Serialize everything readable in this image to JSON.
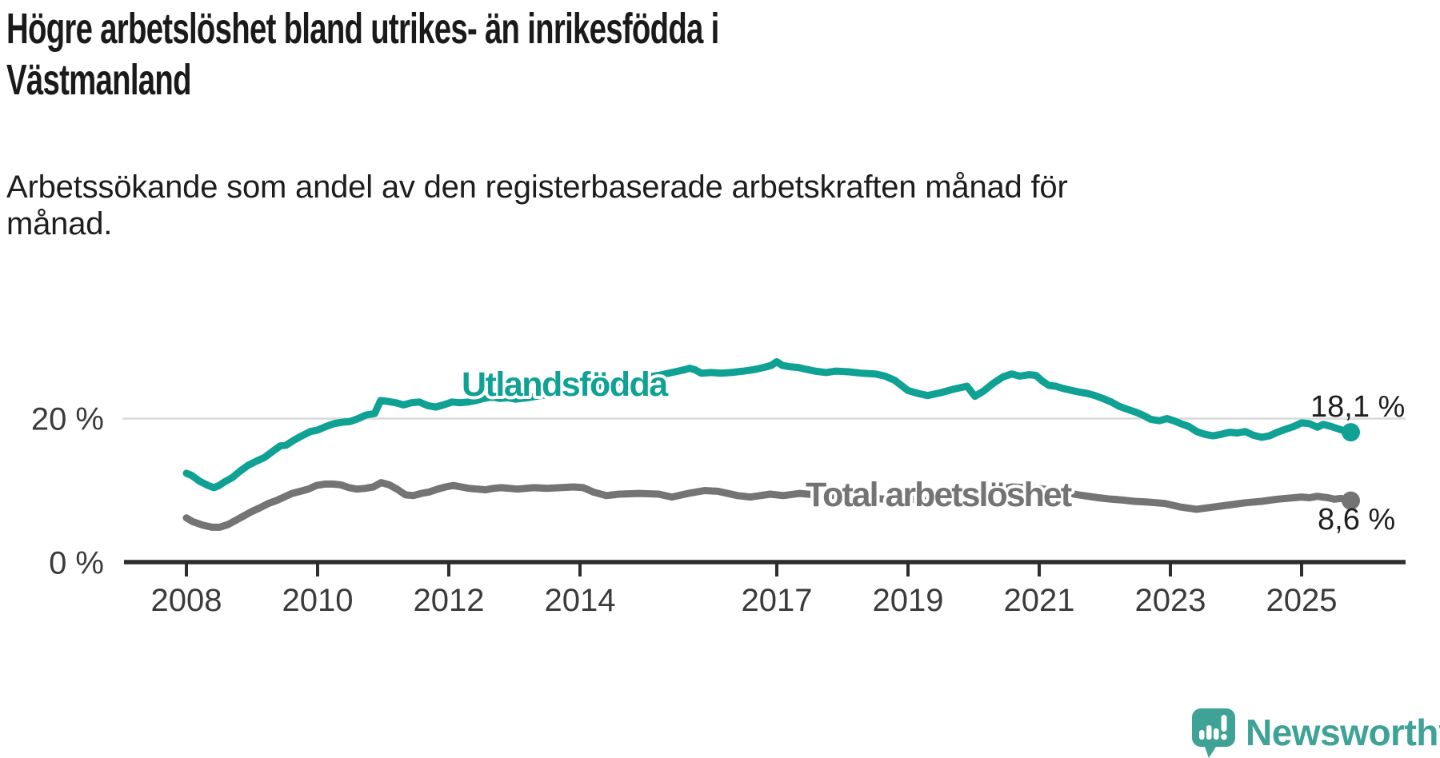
{
  "header": {
    "title_lines": [
      "Högre arbetslöshet bland utrikes- än inrikesfödda i",
      "Västmanland"
    ],
    "subtitle_lines": [
      "Arbetssökande som andel av den registerbaserade arbetskraften månad för",
      "månad."
    ]
  },
  "chart_data": {
    "type": "line",
    "title": "Högre arbetslöshet bland utrikes- än inrikesfödda i Västmanland",
    "subtitle": "Arbetssökande som andel av den registerbaserade arbetskraften månad för månad.",
    "xlabel": "",
    "ylabel": "",
    "x_unit": "year",
    "y_unit": "%",
    "xlim": [
      2007.9,
      2026.6
    ],
    "ylim": [
      0,
      30
    ],
    "grid": "single horizontal gridline at 20 %",
    "legend_position": "inline labels on lines",
    "x_ticks": [
      {
        "value": 2008,
        "label": "2008"
      },
      {
        "value": 2010,
        "label": "2010"
      },
      {
        "value": 2012,
        "label": "2012"
      },
      {
        "value": 2014,
        "label": "2014"
      },
      {
        "value": 2017,
        "label": "2017"
      },
      {
        "value": 2019,
        "label": "2019"
      },
      {
        "value": 2021,
        "label": "2021"
      },
      {
        "value": 2023,
        "label": "2023"
      },
      {
        "value": 2025,
        "label": "2025"
      }
    ],
    "y_ticks": [
      {
        "value": 0,
        "label": "0 %",
        "gridline": false
      },
      {
        "value": 20,
        "label": "20 %",
        "gridline": true
      }
    ],
    "series": [
      {
        "name": "Utlandsfödda",
        "color": "#0fa294",
        "end_label": "18,1 %",
        "end_value": 18.1,
        "points": [
          [
            2008,
            12.4
          ],
          [
            2008.08,
            12.1
          ],
          [
            2008.2,
            11.3
          ],
          [
            2008.33,
            10.7
          ],
          [
            2008.42,
            10.4
          ],
          [
            2008.5,
            10.7
          ],
          [
            2008.58,
            11.2
          ],
          [
            2008.7,
            11.8
          ],
          [
            2008.82,
            12.7
          ],
          [
            2008.94,
            13.5
          ],
          [
            2009.07,
            14.1
          ],
          [
            2009.19,
            14.6
          ],
          [
            2009.31,
            15.4
          ],
          [
            2009.43,
            16.2
          ],
          [
            2009.52,
            16.3
          ],
          [
            2009.64,
            17
          ],
          [
            2009.76,
            17.6
          ],
          [
            2009.89,
            18.2
          ],
          [
            2010,
            18.4
          ],
          [
            2010.13,
            18.9
          ],
          [
            2010.25,
            19.3
          ],
          [
            2010.38,
            19.5
          ],
          [
            2010.5,
            19.6
          ],
          [
            2010.62,
            20
          ],
          [
            2010.74,
            20.5
          ],
          [
            2010.87,
            20.7
          ],
          [
            2010.96,
            22.5
          ],
          [
            2011.06,
            22.4
          ],
          [
            2011.19,
            22.2
          ],
          [
            2011.31,
            21.9
          ],
          [
            2011.43,
            22.2
          ],
          [
            2011.55,
            22.3
          ],
          [
            2011.68,
            21.8
          ],
          [
            2011.8,
            21.6
          ],
          [
            2011.92,
            21.9
          ],
          [
            2012.05,
            22.3
          ],
          [
            2012.17,
            22.2
          ],
          [
            2012.29,
            22.3
          ],
          [
            2012.41,
            22.5
          ],
          [
            2012.53,
            22.8
          ],
          [
            2012.66,
            23
          ],
          [
            2012.78,
            22.8
          ],
          [
            2012.9,
            22.9
          ],
          [
            2013.02,
            22.7
          ],
          [
            2013.2,
            22.9
          ],
          [
            2013.4,
            23.2
          ],
          [
            2013.6,
            23.5
          ],
          [
            2013.8,
            23.8
          ],
          [
            2014,
            24.1
          ],
          [
            2014.2,
            24.4
          ],
          [
            2014.5,
            24.9
          ],
          [
            2014.8,
            25.4
          ],
          [
            2015,
            25.7
          ],
          [
            2015.2,
            26
          ],
          [
            2015.4,
            26.4
          ],
          [
            2015.6,
            26.8
          ],
          [
            2015.67,
            27
          ],
          [
            2015.75,
            26.8
          ],
          [
            2015.85,
            26.3
          ],
          [
            2016,
            26.4
          ],
          [
            2016.15,
            26.3
          ],
          [
            2016.3,
            26.4
          ],
          [
            2016.5,
            26.6
          ],
          [
            2016.65,
            26.8
          ],
          [
            2016.8,
            27.1
          ],
          [
            2016.92,
            27.4
          ],
          [
            2017,
            27.9
          ],
          [
            2017.08,
            27.4
          ],
          [
            2017.2,
            27.2
          ],
          [
            2017.33,
            27.1
          ],
          [
            2017.42,
            26.9
          ],
          [
            2017.58,
            26.6
          ],
          [
            2017.75,
            26.4
          ],
          [
            2017.9,
            26.6
          ],
          [
            2018.1,
            26.5
          ],
          [
            2018.3,
            26.3
          ],
          [
            2018.5,
            26.2
          ],
          [
            2018.65,
            25.9
          ],
          [
            2018.8,
            25.3
          ],
          [
            2019,
            23.9
          ],
          [
            2019.15,
            23.5
          ],
          [
            2019.3,
            23.2
          ],
          [
            2019.5,
            23.6
          ],
          [
            2019.7,
            24.1
          ],
          [
            2019.9,
            24.5
          ],
          [
            2020.02,
            23.1
          ],
          [
            2020.15,
            23.8
          ],
          [
            2020.3,
            24.9
          ],
          [
            2020.45,
            25.8
          ],
          [
            2020.58,
            26.2
          ],
          [
            2020.7,
            25.9
          ],
          [
            2020.85,
            26.1
          ],
          [
            2020.95,
            26
          ],
          [
            2021.05,
            25.2
          ],
          [
            2021.15,
            24.6
          ],
          [
            2021.25,
            24.5
          ],
          [
            2021.36,
            24.2
          ],
          [
            2021.5,
            23.9
          ],
          [
            2021.6,
            23.7
          ],
          [
            2021.73,
            23.5
          ],
          [
            2021.85,
            23.2
          ],
          [
            2021.97,
            22.8
          ],
          [
            2022.1,
            22.3
          ],
          [
            2022.22,
            21.7
          ],
          [
            2022.34,
            21.3
          ],
          [
            2022.47,
            20.9
          ],
          [
            2022.6,
            20.4
          ],
          [
            2022.7,
            19.9
          ],
          [
            2022.83,
            19.7
          ],
          [
            2022.95,
            20
          ],
          [
            2023.05,
            19.7
          ],
          [
            2023.16,
            19.3
          ],
          [
            2023.28,
            18.9
          ],
          [
            2023.4,
            18.2
          ],
          [
            2023.53,
            17.8
          ],
          [
            2023.65,
            17.6
          ],
          [
            2023.77,
            17.8
          ],
          [
            2023.9,
            18.1
          ],
          [
            2024.02,
            18
          ],
          [
            2024.14,
            18.2
          ],
          [
            2024.26,
            17.7
          ],
          [
            2024.39,
            17.4
          ],
          [
            2024.51,
            17.6
          ],
          [
            2024.63,
            18.1
          ],
          [
            2024.75,
            18.5
          ],
          [
            2024.88,
            18.9
          ],
          [
            2025,
            19.4
          ],
          [
            2025.12,
            19.3
          ],
          [
            2025.24,
            18.8
          ],
          [
            2025.33,
            19.2
          ],
          [
            2025.45,
            18.9
          ],
          [
            2025.55,
            18.6
          ],
          [
            2025.65,
            18.3
          ],
          [
            2025.75,
            18.1
          ]
        ]
      },
      {
        "name": "Total arbetslöshet",
        "color": "#747474",
        "end_label": "8,6 %",
        "end_value": 8.6,
        "points": [
          [
            2008,
            6.2
          ],
          [
            2008.09,
            5.7
          ],
          [
            2008.25,
            5.2
          ],
          [
            2008.39,
            4.9
          ],
          [
            2008.51,
            4.9
          ],
          [
            2008.64,
            5.3
          ],
          [
            2008.76,
            5.9
          ],
          [
            2008.88,
            6.5
          ],
          [
            2009,
            7.1
          ],
          [
            2009.12,
            7.6
          ],
          [
            2009.25,
            8.2
          ],
          [
            2009.37,
            8.6
          ],
          [
            2009.49,
            9.1
          ],
          [
            2009.61,
            9.6
          ],
          [
            2009.74,
            9.9
          ],
          [
            2009.86,
            10.2
          ],
          [
            2009.98,
            10.7
          ],
          [
            2010.11,
            10.9
          ],
          [
            2010.23,
            10.9
          ],
          [
            2010.35,
            10.8
          ],
          [
            2010.48,
            10.4
          ],
          [
            2010.6,
            10.2
          ],
          [
            2010.72,
            10.3
          ],
          [
            2010.85,
            10.5
          ],
          [
            2010.97,
            11.1
          ],
          [
            2011.09,
            10.8
          ],
          [
            2011.21,
            10.2
          ],
          [
            2011.34,
            9.4
          ],
          [
            2011.46,
            9.3
          ],
          [
            2011.58,
            9.6
          ],
          [
            2011.7,
            9.8
          ],
          [
            2011.83,
            10.2
          ],
          [
            2011.95,
            10.5
          ],
          [
            2012.07,
            10.7
          ],
          [
            2012.19,
            10.5
          ],
          [
            2012.31,
            10.3
          ],
          [
            2012.44,
            10.2
          ],
          [
            2012.56,
            10.1
          ],
          [
            2012.68,
            10.3
          ],
          [
            2012.8,
            10.4
          ],
          [
            2012.93,
            10.3
          ],
          [
            2013.05,
            10.2
          ],
          [
            2013.3,
            10.4
          ],
          [
            2013.5,
            10.3
          ],
          [
            2013.7,
            10.4
          ],
          [
            2013.9,
            10.5
          ],
          [
            2014.05,
            10.4
          ],
          [
            2014.2,
            9.8
          ],
          [
            2014.4,
            9.3
          ],
          [
            2014.6,
            9.5
          ],
          [
            2014.9,
            9.6
          ],
          [
            2015.2,
            9.5
          ],
          [
            2015.4,
            9.1
          ],
          [
            2015.65,
            9.6
          ],
          [
            2015.9,
            10
          ],
          [
            2016.1,
            9.9
          ],
          [
            2016.4,
            9.3
          ],
          [
            2016.6,
            9.1
          ],
          [
            2016.9,
            9.5
          ],
          [
            2017.1,
            9.3
          ],
          [
            2017.35,
            9.6
          ],
          [
            2017.6,
            9.4
          ],
          [
            2017.9,
            9.3
          ],
          [
            2018.2,
            9.1
          ],
          [
            2018.5,
            8.9
          ],
          [
            2018.8,
            8.7
          ],
          [
            2019.05,
            8.8
          ],
          [
            2019.3,
            8.6
          ],
          [
            2019.6,
            8.7
          ],
          [
            2019.9,
            8.9
          ],
          [
            2020.05,
            8.8
          ],
          [
            2020.2,
            9.5
          ],
          [
            2020.4,
            10.2
          ],
          [
            2020.6,
            10.5
          ],
          [
            2020.8,
            10.4
          ],
          [
            2021,
            10.3
          ],
          [
            2021.3,
            9.9
          ],
          [
            2021.6,
            9.4
          ],
          [
            2021.9,
            9
          ],
          [
            2022.1,
            8.8
          ],
          [
            2022.25,
            8.7
          ],
          [
            2022.45,
            8.5
          ],
          [
            2022.65,
            8.4
          ],
          [
            2022.92,
            8.2
          ],
          [
            2023.16,
            7.7
          ],
          [
            2023.4,
            7.4
          ],
          [
            2023.65,
            7.7
          ],
          [
            2023.9,
            8
          ],
          [
            2024.14,
            8.3
          ],
          [
            2024.39,
            8.5
          ],
          [
            2024.63,
            8.8
          ],
          [
            2024.88,
            9
          ],
          [
            2025,
            9.1
          ],
          [
            2025.12,
            9
          ],
          [
            2025.24,
            9.2
          ],
          [
            2025.4,
            9
          ],
          [
            2025.5,
            8.8
          ],
          [
            2025.6,
            8.9
          ],
          [
            2025.7,
            8.7
          ],
          [
            2025.75,
            8.6
          ]
        ]
      }
    ]
  },
  "branding": {
    "logo_text": "Newsworthy",
    "logo_color": "#3fa296",
    "logo_icon": "speech-bubble-bar-chart"
  }
}
